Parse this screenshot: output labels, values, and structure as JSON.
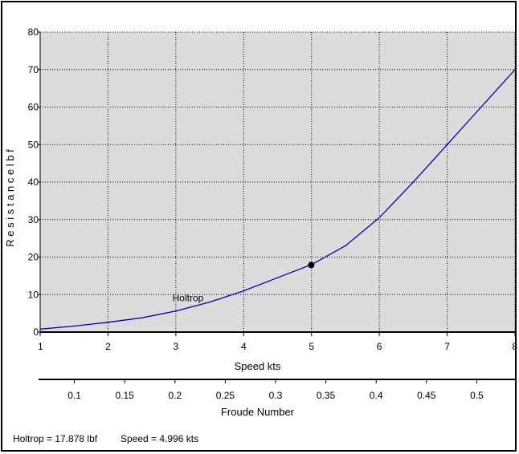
{
  "chart_data": {
    "type": "line",
    "xlabel": "Speed  kts",
    "ylabel": "R e s i s t a n c e   l b f",
    "xlim": [
      1,
      8
    ],
    "ylim": [
      0,
      80
    ],
    "x_ticks": [
      1,
      2,
      3,
      4,
      5,
      6,
      7,
      8
    ],
    "y_ticks": [
      0,
      10,
      20,
      30,
      40,
      50,
      60,
      70,
      80
    ],
    "grid": true,
    "plot_background": "#dcdcdc",
    "series": [
      {
        "name": "Holtrop",
        "color": "#0000b4",
        "x": [
          1.0,
          1.5,
          2.0,
          2.5,
          3.0,
          3.5,
          4.0,
          4.5,
          5.0,
          5.5,
          6.0,
          6.5,
          7.0,
          7.5,
          8.0
        ],
        "y": [
          0.8,
          1.6,
          2.6,
          3.8,
          5.6,
          8.0,
          11.0,
          14.5,
          18.0,
          23.0,
          30.5,
          40.0,
          50.0,
          60.0,
          70.0
        ]
      }
    ],
    "marker": {
      "x": 4.996,
      "y": 17.878,
      "color": "#000000"
    },
    "secondary_axis": {
      "label": "Froude Number",
      "lim": [
        0.066,
        0.538
      ],
      "ticks": [
        "0.1",
        "0.15",
        "0.2",
        "0.25",
        "0.3",
        "0.35",
        "0.4",
        "0.45",
        "0.5"
      ]
    }
  },
  "readout": {
    "holtrop": "Holtrop =  17.878 lbf",
    "speed": "Speed =  4.996 kts"
  }
}
